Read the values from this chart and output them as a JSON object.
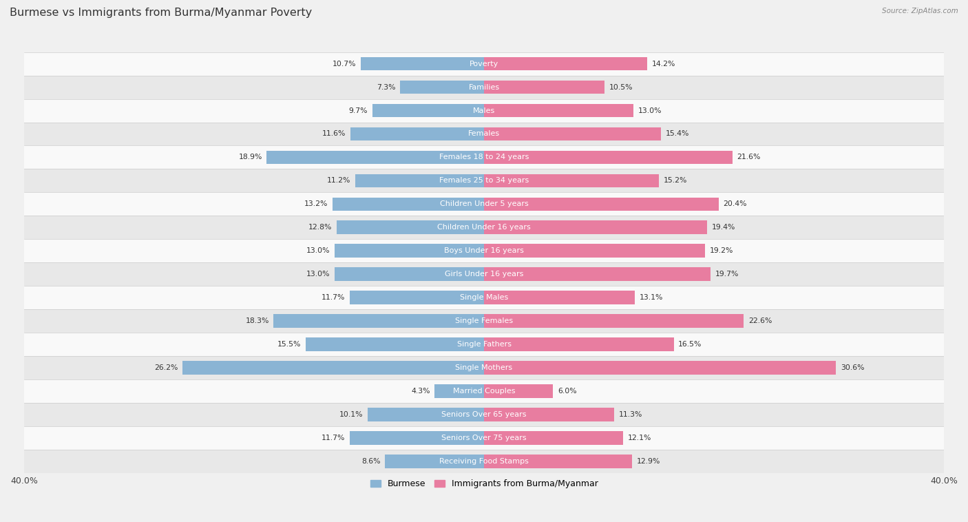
{
  "title": "Burmese vs Immigrants from Burma/Myanmar Poverty",
  "source": "Source: ZipAtlas.com",
  "categories": [
    "Poverty",
    "Families",
    "Males",
    "Females",
    "Females 18 to 24 years",
    "Females 25 to 34 years",
    "Children Under 5 years",
    "Children Under 16 years",
    "Boys Under 16 years",
    "Girls Under 16 years",
    "Single Males",
    "Single Females",
    "Single Fathers",
    "Single Mothers",
    "Married Couples",
    "Seniors Over 65 years",
    "Seniors Over 75 years",
    "Receiving Food Stamps"
  ],
  "burmese_values": [
    10.7,
    7.3,
    9.7,
    11.6,
    18.9,
    11.2,
    13.2,
    12.8,
    13.0,
    13.0,
    11.7,
    18.3,
    15.5,
    26.2,
    4.3,
    10.1,
    11.7,
    8.6
  ],
  "immigrant_values": [
    14.2,
    10.5,
    13.0,
    15.4,
    21.6,
    15.2,
    20.4,
    19.4,
    19.2,
    19.7,
    13.1,
    22.6,
    16.5,
    30.6,
    6.0,
    11.3,
    12.1,
    12.9
  ],
  "burmese_color": "#8ab4d4",
  "immigrant_color": "#e87da0",
  "burmese_label": "Burmese",
  "immigrant_label": "Immigrants from Burma/Myanmar",
  "max_val": 40.0,
  "bar_height": 0.58,
  "background_color": "#f0f0f0",
  "row_color_odd": "#f9f9f9",
  "row_color_even": "#e8e8e8",
  "label_fontsize": 8.0,
  "value_fontsize": 7.8,
  "title_fontsize": 11.5
}
